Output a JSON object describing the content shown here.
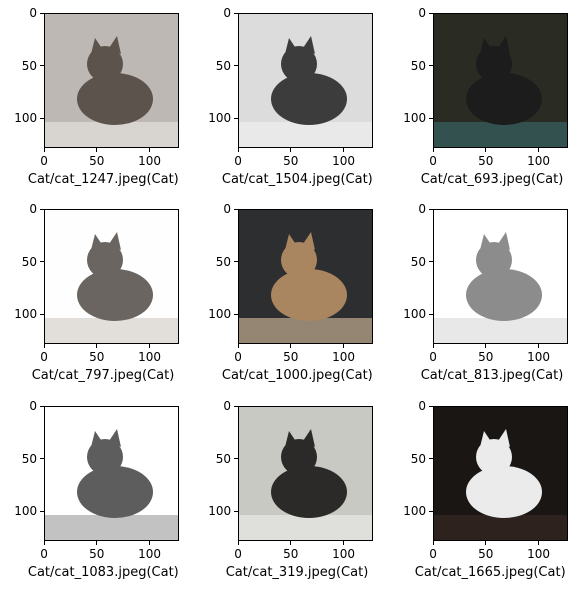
{
  "figure": {
    "type": "image-grid",
    "chart_data": [
      {
        "type": "image",
        "caption": "Cat/cat_1247.jpeg(Cat)",
        "xticks": [
          0,
          50,
          100
        ],
        "yticks": [
          0,
          50,
          100
        ],
        "xlim": [
          0,
          128
        ],
        "ylim": [
          128,
          0
        ]
      },
      {
        "type": "image",
        "caption": "Cat/cat_1504.jpeg(Cat)",
        "xticks": [
          0,
          50,
          100
        ],
        "yticks": [
          0,
          50,
          100
        ],
        "xlim": [
          0,
          128
        ],
        "ylim": [
          128,
          0
        ]
      },
      {
        "type": "image",
        "caption": "Cat/cat_693.jpeg(Cat)",
        "xticks": [
          0,
          50,
          100
        ],
        "yticks": [
          0,
          50,
          100
        ],
        "xlim": [
          0,
          128
        ],
        "ylim": [
          128,
          0
        ]
      },
      {
        "type": "image",
        "caption": "Cat/cat_797.jpeg(Cat)",
        "xticks": [
          0,
          50,
          100
        ],
        "yticks": [
          0,
          50,
          100
        ],
        "xlim": [
          0,
          128
        ],
        "ylim": [
          128,
          0
        ]
      },
      {
        "type": "image",
        "caption": "Cat/cat_1000.jpeg(Cat)",
        "xticks": [
          0,
          50,
          100
        ],
        "yticks": [
          0,
          50,
          100
        ],
        "xlim": [
          0,
          128
        ],
        "ylim": [
          128,
          0
        ]
      },
      {
        "type": "image",
        "caption": "Cat/cat_813.jpeg(Cat)",
        "xticks": [
          0,
          50,
          100
        ],
        "yticks": [
          0,
          50,
          100
        ],
        "xlim": [
          0,
          128
        ],
        "ylim": [
          128,
          0
        ]
      },
      {
        "type": "image",
        "caption": "Cat/cat_1083.jpeg(Cat)",
        "xticks": [
          0,
          50,
          100
        ],
        "yticks": [
          0,
          50,
          100
        ],
        "xlim": [
          0,
          128
        ],
        "ylim": [
          128,
          0
        ]
      },
      {
        "type": "image",
        "caption": "Cat/cat_319.jpeg(Cat)",
        "xticks": [
          0,
          50,
          100
        ],
        "yticks": [
          0,
          50,
          100
        ],
        "xlim": [
          0,
          128
        ],
        "ylim": [
          128,
          0
        ]
      },
      {
        "type": "image",
        "caption": "Cat/cat_1665.jpeg(Cat)",
        "xticks": [
          0,
          50,
          100
        ],
        "yticks": [
          0,
          50,
          100
        ],
        "xlim": [
          0,
          128
        ],
        "ylim": [
          128,
          0
        ]
      }
    ]
  },
  "photos": [
    {
      "bg": "#bdb8b4",
      "fg": "#5b534c",
      "accent": "#e9e7e5"
    },
    {
      "bg": "#dcdcdc",
      "fg": "#3d3c3c",
      "accent": "#f2f2f2"
    },
    {
      "bg": "#2a2b22",
      "fg": "#1c1c1c",
      "accent": "#3a6b6e"
    },
    {
      "bg": "#fefefe",
      "fg": "#6a6560",
      "accent": "#cfc9c2"
    },
    {
      "bg": "#2d2e2f",
      "fg": "#a98660",
      "accent": "#d8c2a2"
    },
    {
      "bg": "#ffffff",
      "fg": "#8c8c8c",
      "accent": "#d9d9d9"
    },
    {
      "bg": "#ffffff",
      "fg": "#5d5d5d",
      "accent": "#9a9a9a"
    },
    {
      "bg": "#c9c9c3",
      "fg": "#2b2a28",
      "accent": "#efeeec"
    },
    {
      "bg": "#1a1614",
      "fg": "#ebebeb",
      "accent": "#3b2b25"
    }
  ]
}
